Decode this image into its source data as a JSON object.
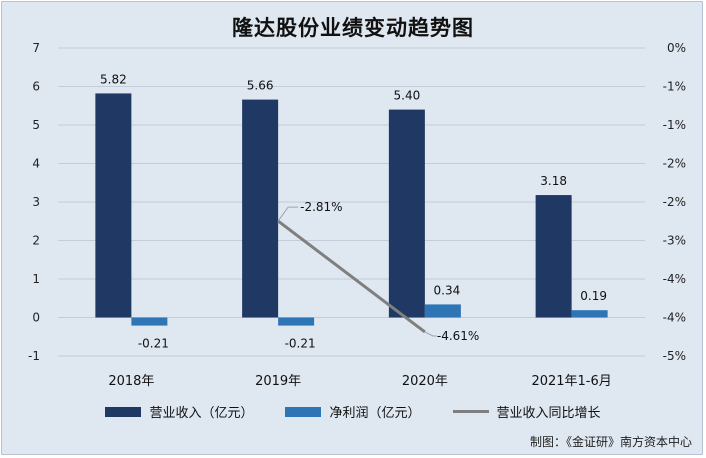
{
  "chart_data": {
    "type": "bar",
    "title": "隆达股份业绩变动趋势图",
    "categories": [
      "2018年",
      "2019年",
      "2020年",
      "2021年1-6月"
    ],
    "series": [
      {
        "name": "营业收入（亿元）",
        "kind": "bar",
        "axis": "left",
        "color": "#1f3864",
        "values": [
          5.82,
          5.66,
          5.4,
          3.18
        ],
        "labels": [
          "5.82",
          "5.66",
          "5.40",
          "3.18"
        ]
      },
      {
        "name": "净利润（亿元）",
        "kind": "bar",
        "axis": "left",
        "color": "#2e75b6",
        "values": [
          -0.21,
          -0.21,
          0.34,
          0.19
        ],
        "labels": [
          "-0.21",
          "-0.21",
          "0.34",
          "0.19"
        ]
      },
      {
        "name": "营业收入同比增长",
        "kind": "line",
        "axis": "right",
        "color": "#7f7f7f",
        "points": [
          {
            "category": "2019年",
            "value": -2.81,
            "label": "-2.81%"
          },
          {
            "category": "2020年",
            "value": -4.61,
            "label": "-4.61%"
          }
        ]
      }
    ],
    "y_left": {
      "min": -1,
      "max": 7,
      "ticks": [
        -1,
        0,
        1,
        2,
        3,
        4,
        5,
        6,
        7
      ],
      "tick_labels": [
        "-1",
        "0",
        "1",
        "2",
        "3",
        "4",
        "5",
        "6",
        "7"
      ]
    },
    "y_right": {
      "min": -5,
      "max": 0,
      "ticks": [
        0,
        -0.625,
        -1.25,
        -1.875,
        -2.5,
        -3.125,
        -3.75,
        -4.375,
        -5
      ],
      "tick_labels": [
        "0%",
        "-1%",
        "-1%",
        "-2%",
        "-2%",
        "-3%",
        "-4%",
        "-4%",
        "-5%"
      ]
    },
    "grid": true,
    "legend_position": "bottom",
    "source": "制图：《金证研》南方资本中心"
  }
}
